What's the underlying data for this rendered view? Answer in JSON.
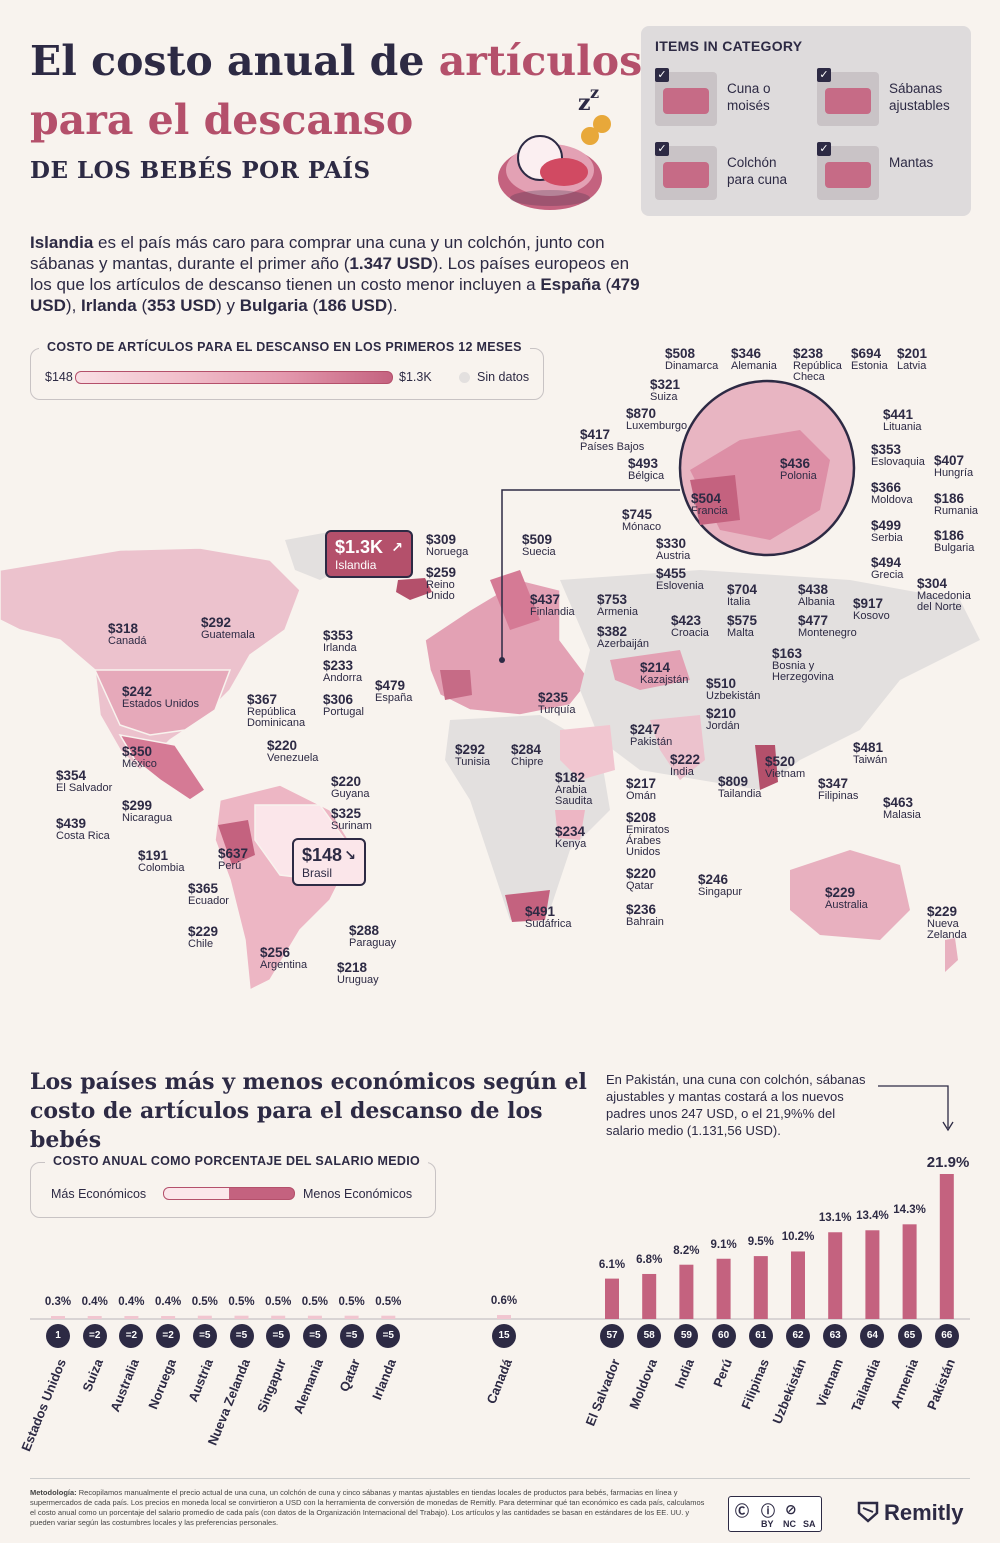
{
  "header": {
    "title_part1": "El costo anual de ",
    "title_accent": "artículos",
    "title_line2": "para el descanso",
    "subtitle": "DE LOS BEBÉS POR PAÍS"
  },
  "intro": {
    "p1_bold": "Islandia",
    "p1": " es el país más caro para comprar una cuna y un colchón, junto con sábanas y mantas, durante el primer año (",
    "p1_val": "1.347 USD",
    "p2": "). Los países europeos en los que los artículos de descanso tienen un costo menor incluyen a ",
    "c1": "España",
    "v1": "479 USD",
    "c2": "Irlanda",
    "v2": "353 USD",
    "c3": "Bulgaria",
    "v3": "186 USD"
  },
  "items_box": {
    "title": "ITEMS IN CATEGORY",
    "items": [
      "Cuna o moisés",
      "Sábanas ajustables",
      "Colchón para cuna",
      "Mantas"
    ]
  },
  "map_legend": {
    "title": "COSTO DE ARTÍCULOS PARA EL DESCANSO EN LOS PRIMEROS 12 MESES",
    "min": "$148",
    "max": "$1.3K",
    "nodata": "Sin datos"
  },
  "map_labels": [
    {
      "p": "$508",
      "n": "Dinamarca"
    },
    {
      "p": "$346",
      "n": "Alemania"
    },
    {
      "p": "$238",
      "n": "República Checa"
    },
    {
      "p": "$694",
      "n": "Estonia"
    },
    {
      "p": "$201",
      "n": "Latvia"
    },
    {
      "p": "$321",
      "n": "Suiza"
    },
    {
      "p": "$870",
      "n": "Luxemburgo"
    },
    {
      "p": "$441",
      "n": "Lituania"
    },
    {
      "p": "$417",
      "n": "Países Bajos"
    },
    {
      "p": "$353",
      "n": "Eslovaquia"
    },
    {
      "p": "$407",
      "n": "Hungría"
    },
    {
      "p": "$493",
      "n": "Bélgica"
    },
    {
      "p": "$436",
      "n": "Polonia"
    },
    {
      "p": "$366",
      "n": "Moldova"
    },
    {
      "p": "$186",
      "n": "Rumania"
    },
    {
      "p": "$504",
      "n": "Francia"
    },
    {
      "p": "$499",
      "n": "Serbia"
    },
    {
      "p": "$745",
      "n": "Mónaco"
    },
    {
      "p": "$186",
      "n": "Bulgaria"
    },
    {
      "p": "$330",
      "n": "Austria"
    },
    {
      "p": "$494",
      "n": "Grecia"
    },
    {
      "p": "$455",
      "n": "Eslovenia"
    },
    {
      "p": "$304",
      "n": "Macedonia del Norte"
    },
    {
      "p": "$704",
      "n": "Italia"
    },
    {
      "p": "$438",
      "n": "Albania"
    },
    {
      "p": "$917",
      "n": "Kosovo"
    },
    {
      "p": "$423",
      "n": "Croacia"
    },
    {
      "p": "$575",
      "n": "Malta"
    },
    {
      "p": "$477",
      "n": "Montenegro"
    },
    {
      "p": "$163",
      "n": "Bosnia y Herzegovina"
    },
    {
      "p": "$309",
      "n": "Noruega"
    },
    {
      "p": "$509",
      "n": "Suecia"
    },
    {
      "p": "$259",
      "n": "Reino Unido"
    },
    {
      "p": "$437",
      "n": "Finlandia"
    },
    {
      "p": "$753",
      "n": "Armenia"
    },
    {
      "p": "$382",
      "n": "Azerbaiján"
    },
    {
      "p": "$318",
      "n": "Canadá"
    },
    {
      "p": "$292",
      "n": "Guatemala"
    },
    {
      "p": "$353",
      "n": "Irlanda"
    },
    {
      "p": "$233",
      "n": "Andorra"
    },
    {
      "p": "$479",
      "n": "España"
    },
    {
      "p": "$306",
      "n": "Portugal"
    },
    {
      "p": "$214",
      "n": "Kazajstán"
    },
    {
      "p": "$510",
      "n": "Uzbekistán"
    },
    {
      "p": "$235",
      "n": "Turquía"
    },
    {
      "p": "$242",
      "n": "Estados Unidos"
    },
    {
      "p": "$367",
      "n": "República Dominicana"
    },
    {
      "p": "$210",
      "n": "Jordán"
    },
    {
      "p": "$247",
      "n": "Pakistán"
    },
    {
      "p": "$220",
      "n": "Venezuela"
    },
    {
      "p": "$292",
      "n": "Tunisia"
    },
    {
      "p": "$284",
      "n": "Chipre"
    },
    {
      "p": "$222",
      "n": "India"
    },
    {
      "p": "$520",
      "n": "Vietnam"
    },
    {
      "p": "$481",
      "n": "Taiwán"
    },
    {
      "p": "$350",
      "n": "México"
    },
    {
      "p": "$354",
      "n": "El Salvador"
    },
    {
      "p": "$220",
      "n": "Guyana"
    },
    {
      "p": "$182",
      "n": "Arabia Saudita"
    },
    {
      "p": "$809",
      "n": "Tailandia"
    },
    {
      "p": "$347",
      "n": "Filipinas"
    },
    {
      "p": "$299",
      "n": "Nicaragua"
    },
    {
      "p": "$325",
      "n": "Surinam"
    },
    {
      "p": "$217",
      "n": "Omán"
    },
    {
      "p": "$463",
      "n": "Malasia"
    },
    {
      "p": "$439",
      "n": "Costa Rica"
    },
    {
      "p": "$208",
      "n": "Emiratos Árabes Unidos"
    },
    {
      "p": "$234",
      "n": "Kenya"
    },
    {
      "p": "$191",
      "n": "Colombia"
    },
    {
      "p": "$637",
      "n": "Perú"
    },
    {
      "p": "$220",
      "n": "Qatar"
    },
    {
      "p": "$246",
      "n": "Singapur"
    },
    {
      "p": "$365",
      "n": "Ecuador"
    },
    {
      "p": "$229",
      "n": "Australia"
    },
    {
      "p": "$491",
      "n": "Sudáfrica"
    },
    {
      "p": "$236",
      "n": "Bahrain"
    },
    {
      "p": "$229",
      "n": "Chile"
    },
    {
      "p": "$229",
      "n": "Nueva Zelanda"
    },
    {
      "p": "$288",
      "n": "Paraguay"
    },
    {
      "p": "$256",
      "n": "Argentina"
    },
    {
      "p": "$218",
      "n": "Uruguay"
    }
  ],
  "highlights": {
    "iceland": {
      "price": "$1.3K",
      "name": "Islandia",
      "arrow": "↗"
    },
    "brazil": {
      "price": "$148",
      "name": "Brasil",
      "arrow": "↘"
    }
  },
  "ranking": {
    "title": "Los países más y menos económicos según el costo de artículos para el descanso de los bebés",
    "legend_title": "COSTO ANUAL COMO PORCENTAJE DEL SALARIO MEDIO",
    "legend_low": "Más Económicos",
    "legend_high": "Menos Económicos",
    "note": "En Pakistán, una cuna con colchón, sábanas ajustables y mantas costará a los nuevos padres unos 247 USD, o el 21,9%% del salario medio (1.131,56 USD)."
  },
  "chart_data": {
    "type": "bar",
    "title": "Los países más y menos económicos según el costo de artículos para el descanso de los bebés",
    "ylabel": "COSTO ANUAL COMO PORCENTAJE DEL SALARIO MEDIO",
    "categories": [
      "Estados Unidos",
      "Suiza",
      "Australia",
      "Noruega",
      "Austria",
      "Nueva Zelanda",
      "Singapur",
      "Alemania",
      "Qatar",
      "Irlanda",
      "Canadá",
      "El Salvador",
      "Moldova",
      "India",
      "Perú",
      "Filipinas",
      "Uzbekistán",
      "Vietnam",
      "Tailandia",
      "Armenia",
      "Pakistán"
    ],
    "ranks": [
      "1",
      "=2",
      "=2",
      "=2",
      "=5",
      "=5",
      "=5",
      "=5",
      "=5",
      "=5",
      "15",
      "57",
      "58",
      "59",
      "60",
      "61",
      "62",
      "63",
      "64",
      "65",
      "66"
    ],
    "values": [
      0.3,
      0.4,
      0.4,
      0.4,
      0.5,
      0.5,
      0.5,
      0.5,
      0.5,
      0.5,
      0.6,
      6.1,
      6.8,
      8.2,
      9.1,
      9.5,
      10.2,
      13.1,
      13.4,
      14.3,
      21.9
    ],
    "labels": [
      "0.3%",
      "0.4%",
      "0.4%",
      "0.4%",
      "0.5%",
      "0.5%",
      "0.5%",
      "0.5%",
      "0.5%",
      "0.5%",
      "0.6%",
      "6.1%",
      "6.8%",
      "8.2%",
      "9.1%",
      "9.5%",
      "10.2%",
      "13.1%",
      "13.4%",
      "14.3%",
      "21.9%"
    ],
    "ylim": [
      0,
      21.9
    ]
  },
  "footer": {
    "method_bold": "Metodología:",
    "method": " Recopilamos manualmente el precio actual de una cuna, un colchón de cuna y cinco sábanas y mantas ajustables en tiendas locales de productos para bebés, farmacias en línea y supermercados de cada país. Los precios en moneda local se convirtieron a USD con la herramienta de conversión de monedas de Remitly. Para determinar qué tan económico es cada país, calculamos el costo anual como un porcentaje del salario promedio de cada país (con datos de la Organización Internacional del Trabajo). Los artículos y las cantidades se basan en estándares de los EE. UU. y pueden variar según las costumbres locales y las preferencias personales.",
    "cc": [
      "BY",
      "NC",
      "SA"
    ],
    "brand": "Remitly"
  },
  "colors": {
    "ink": "#2d2a44",
    "accent": "#b4506b",
    "bar": "#c4627f",
    "bar_light": "#f1c6d0",
    "bg": "#f8f3ee",
    "nodata": "#e3e0df"
  }
}
